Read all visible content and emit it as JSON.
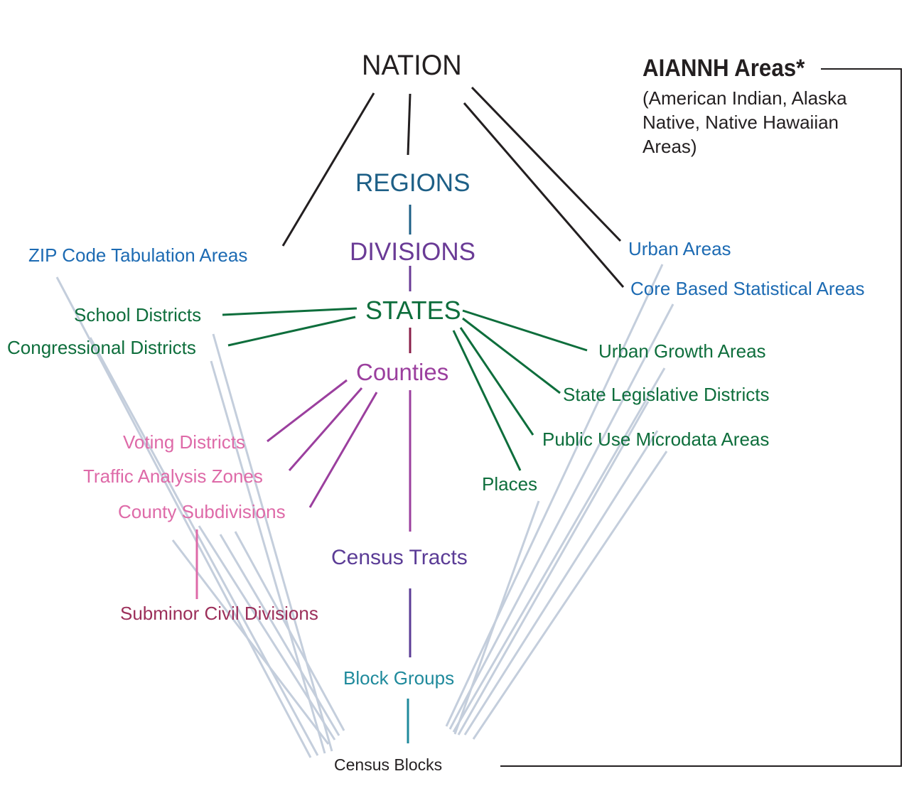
{
  "nodes": {
    "nation": {
      "text": "NATION",
      "color": "#231f20"
    },
    "regions": {
      "text": "REGIONS",
      "color": "#1d5f86"
    },
    "divisions": {
      "text": "DIVISIONS",
      "color": "#6a3b96"
    },
    "states": {
      "text": "STATES",
      "color": "#0e6e3c"
    },
    "counties": {
      "text": "Counties",
      "color": "#9b3f9e"
    },
    "census_tracts": {
      "text": "Census Tracts",
      "color": "#5b3c96"
    },
    "block_groups": {
      "text": "Block Groups",
      "color": "#1f8a9c"
    },
    "census_blocks": {
      "text": "Census Blocks",
      "color": "#231f20"
    },
    "zip_code_tabulation_areas": {
      "text": "ZIP Code Tabulation Areas",
      "color": "#1d6bb3"
    },
    "school_districts": {
      "text": "School Districts",
      "color": "#0e6e3c"
    },
    "congressional_districts": {
      "text": "Congressional Districts",
      "color": "#0e6e3c"
    },
    "voting_districts": {
      "text": "Voting Districts",
      "color": "#de6aa8"
    },
    "traffic_analysis_zones": {
      "text": "Traffic Analysis Zones",
      "color": "#de6aa8"
    },
    "county_subdivisions": {
      "text": "County Subdivisions",
      "color": "#de6aa8"
    },
    "subminor_civil_divisions": {
      "text": "Subminor Civil Divisions",
      "color": "#9c2f5a"
    },
    "places": {
      "text": "Places",
      "color": "#0e6e3c"
    },
    "public_use_microdata_areas": {
      "text": "Public Use Microdata Areas",
      "color": "#0e6e3c"
    },
    "state_legislative_districts": {
      "text": "State Legislative Districts",
      "color": "#0e6e3c"
    },
    "urban_growth_areas": {
      "text": "Urban Growth Areas",
      "color": "#0e6e3c"
    },
    "urban_areas": {
      "text": "Urban Areas",
      "color": "#1d6bb3"
    },
    "core_based_statistical_areas": {
      "text": "Core Based Statistical Areas",
      "color": "#1d6bb3"
    }
  },
  "aiannh": {
    "title": "AIANNH Areas*",
    "line1": "(American Indian, Alaska",
    "line2": "Native, Native Hawaiian",
    "line3": "Areas)",
    "color": "#231f20"
  },
  "edge_colors": {
    "nation": "#231f20",
    "regions": "#1d5f86",
    "divisions": "#6a3b96",
    "states": "#0e6e3c",
    "counties": "#9b3f9e",
    "tracts": "#5b3c96",
    "block_groups": "#1f8a9c",
    "county_subdivisions": "#de6aa8",
    "to_blocks": "#c4cedc"
  }
}
